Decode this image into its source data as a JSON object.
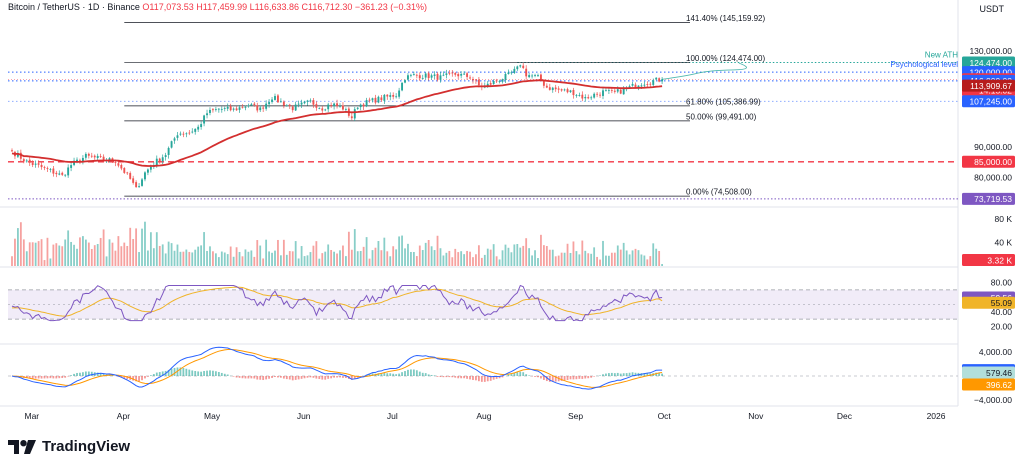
{
  "header": {
    "symbol": "Bitcoin / TetherUS · 1D · Binance",
    "ohlc": "O117,073.53 H117,459.99 L116,633.86 C116,712.30 −361.23 (−0.31%)"
  },
  "currency": "USDT",
  "brand": {
    "name": "TradingView"
  },
  "colors": {
    "up": "#26a69a",
    "down": "#ef5350",
    "ema": "#d32f2f",
    "rsi": "#7e57c2",
    "rsi_ma": "#f0b429",
    "macd": "#2962ff",
    "signal": "#ff9800",
    "label_green": "#26a69a",
    "label_red": "#f23645",
    "label_blue": "#2962ff",
    "label_purple": "#7e57c2",
    "label_yellow": "#f0b429",
    "label_orange": "#ff9800",
    "label_darkred": "#b71c1c"
  },
  "chart_data": {
    "type": "candlestick",
    "start_date": "2025-02-25",
    "x_tick_labels": [
      "Mar",
      "Apr",
      "May",
      "Jun",
      "Jul",
      "Aug",
      "Sep",
      "Oct",
      "Nov",
      "Dec",
      "2026"
    ],
    "x_tick_dates": [
      "2025-03-01",
      "2025-04-01",
      "2025-05-01",
      "2025-06-01",
      "2025-07-01",
      "2025-08-01",
      "2025-09-01",
      "2025-10-01",
      "2025-11-01",
      "2025-12-01",
      "2026-01-01"
    ],
    "price_axis": {
      "min": 72000,
      "max": 150000,
      "scale": "log",
      "tick_labels": [
        "130,000.00",
        "90,000.00",
        "80,000.00"
      ],
      "tick_values": [
        130000,
        90000,
        80000
      ]
    },
    "close_anchors": [
      [
        0,
        88500
      ],
      [
        5,
        85000
      ],
      [
        12,
        82500
      ],
      [
        17,
        80500
      ],
      [
        20,
        84000
      ],
      [
        25,
        86800
      ],
      [
        30,
        86000
      ],
      [
        35,
        85300
      ],
      [
        40,
        79500
      ],
      [
        42,
        76500
      ],
      [
        45,
        81500
      ],
      [
        48,
        84500
      ],
      [
        52,
        87500
      ],
      [
        56,
        94800
      ],
      [
        60,
        95200
      ],
      [
        63,
        97000
      ],
      [
        66,
        102500
      ],
      [
        70,
        104200
      ],
      [
        75,
        103800
      ],
      [
        80,
        105800
      ],
      [
        84,
        104000
      ],
      [
        88,
        109000
      ],
      [
        90,
        107500
      ],
      [
        95,
        104500
      ],
      [
        98,
        105800
      ],
      [
        101,
        107000
      ],
      [
        105,
        104500
      ],
      [
        108,
        106200
      ],
      [
        112,
        104500
      ],
      [
        115,
        100800
      ],
      [
        117,
        105500
      ],
      [
        121,
        107200
      ],
      [
        126,
        108800
      ],
      [
        130,
        110000
      ],
      [
        133,
        117500
      ],
      [
        136,
        118500
      ],
      [
        141,
        118200
      ],
      [
        145,
        117500
      ],
      [
        150,
        119000
      ],
      [
        155,
        117800
      ],
      [
        158,
        114000
      ],
      [
        160,
        113500
      ],
      [
        164,
        116000
      ],
      [
        168,
        118500
      ],
      [
        171,
        121500
      ],
      [
        172,
        124000
      ],
      [
        174,
        119000
      ],
      [
        178,
        117500
      ],
      [
        181,
        113200
      ],
      [
        185,
        112000
      ],
      [
        190,
        111000
      ],
      [
        194,
        108500
      ],
      [
        197,
        110000
      ],
      [
        200,
        111200
      ],
      [
        204,
        110800
      ],
      [
        208,
        112500
      ],
      [
        212,
        114800
      ],
      [
        216,
        115800
      ],
      [
        220,
        116712.3
      ]
    ],
    "fib_levels": [
      {
        "ratio": 0,
        "value": 74508,
        "label": "0.00% (74,508.00)"
      },
      {
        "ratio": 0.5,
        "value": 99491,
        "label": "50.00% (99,491.00)"
      },
      {
        "ratio": 0.618,
        "value": 105386.99,
        "label": "61.80% (105,386.99)"
      },
      {
        "ratio": 1,
        "value": 124474,
        "label": "100.00% (124,474.00)"
      },
      {
        "ratio": 1.414,
        "value": 145159.92,
        "label": "141.40% (145,159.92)"
      }
    ],
    "annotations": [
      "New ATH",
      "Psychological level"
    ],
    "price_labels": [
      {
        "value": 124474,
        "text": "124,474.00",
        "color": "label_green"
      },
      {
        "value": 120000,
        "text": "120,000.00",
        "color": "label_blue"
      },
      {
        "value": 116712.3,
        "text": "116,712.30",
        "sub": "14:15:02",
        "color": "label_red"
      },
      {
        "value": 116000,
        "text": "116,000.00",
        "color": "label_blue"
      },
      {
        "value": 113909.67,
        "text": "113,909.67",
        "color": "label_darkred"
      },
      {
        "value": 107245,
        "text": "107,245.00",
        "color": "label_blue"
      },
      {
        "value": 85000,
        "text": "85,000.00",
        "color": "label_red"
      },
      {
        "value": 73719.53,
        "text": "73,719.53",
        "color": "label_purple"
      }
    ],
    "ema_value": 113909.67,
    "volume": {
      "last": 3.32,
      "last_label": "3.32 K",
      "unit": "K",
      "ticks": [
        "80 K",
        "40 K"
      ],
      "tick_values": [
        80,
        40
      ],
      "max": 95
    },
    "rsi": {
      "value": 59.56,
      "ma": 55.09,
      "value_label": "59.56",
      "ma_label": "55.09",
      "ticks": [
        "80.00",
        "40.00",
        "20.00"
      ],
      "tick_values": [
        80,
        40,
        20
      ],
      "bands": [
        30,
        70
      ]
    },
    "macd": {
      "macd": 976.08,
      "signal": 579.46,
      "hist": 396.62,
      "macd_label": "976.08",
      "signal_label": "579.46",
      "hist_label": "396.62",
      "ticks": [
        "4,000.00",
        "−4,000.00"
      ],
      "tick_values": [
        4000,
        -4000
      ]
    }
  }
}
